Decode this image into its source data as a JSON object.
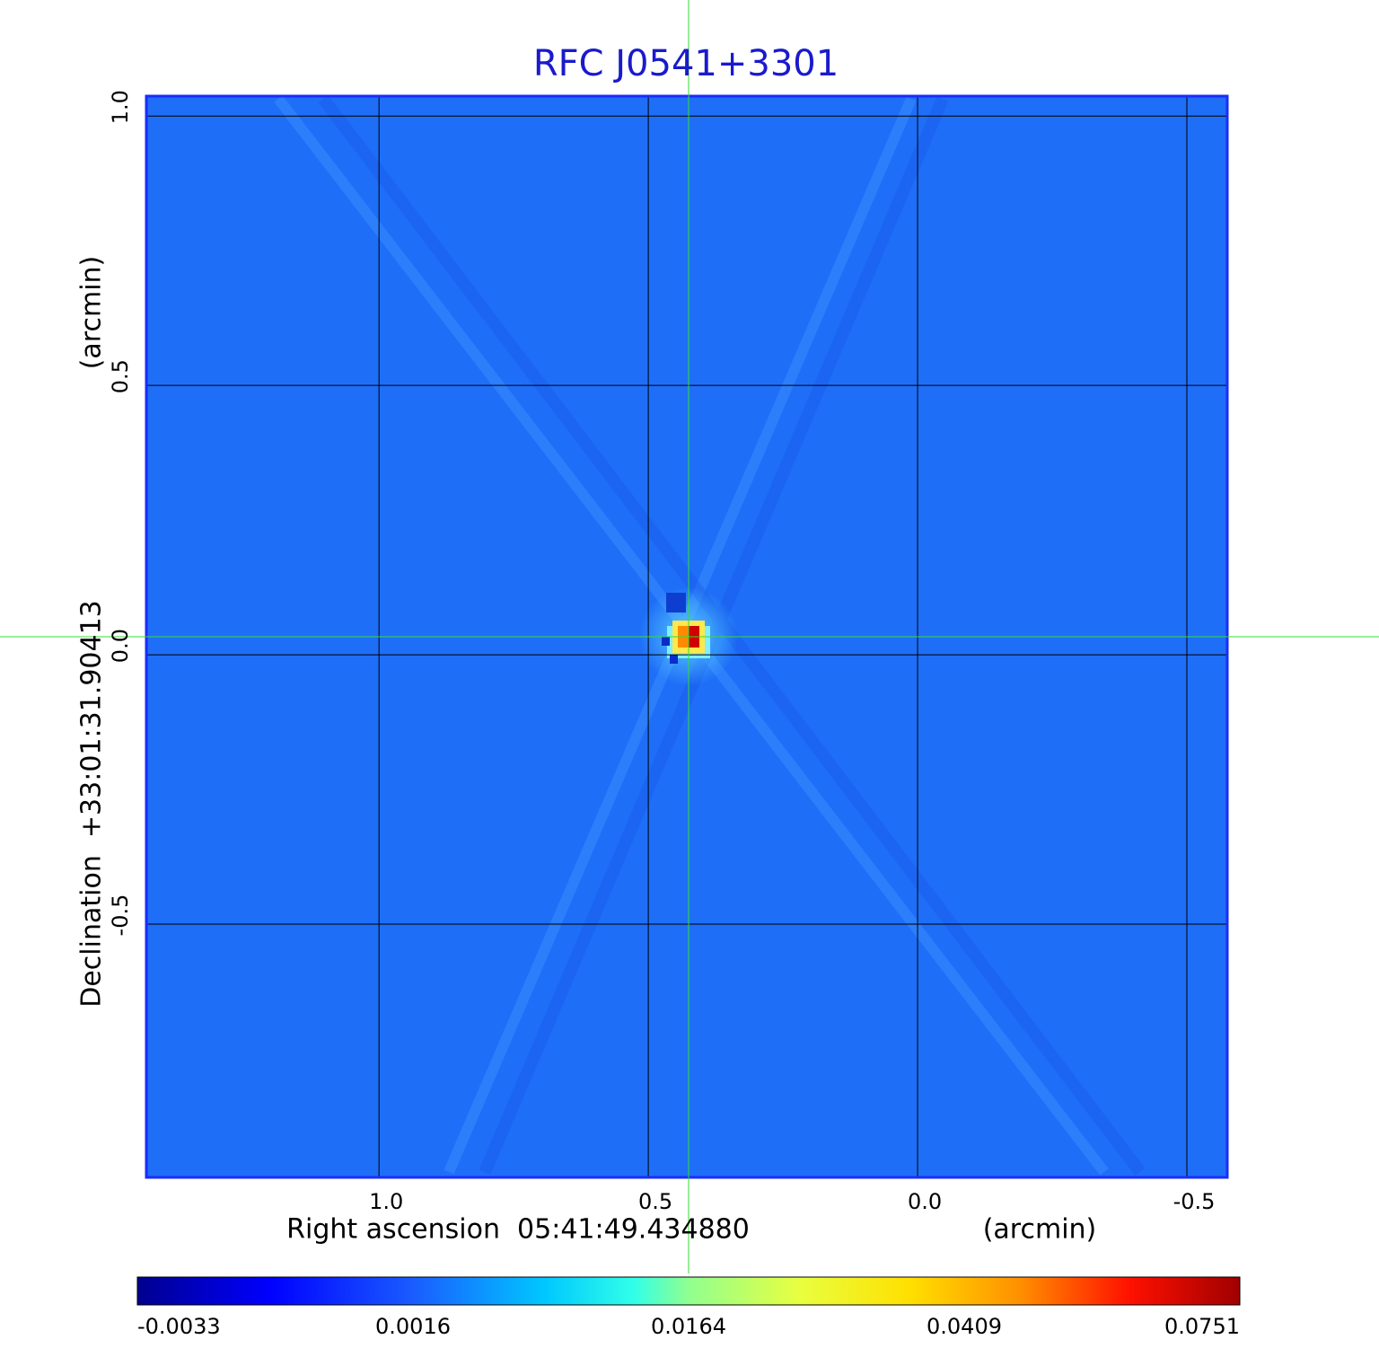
{
  "chart_data": {
    "type": "image",
    "title": "RFC J0541+3301",
    "x_label": "Right ascension  05:41:49.434880",
    "x_unit": "(arcmin)",
    "y_label": "Declination  +33:01:31.90413",
    "y_unit": "(arcmin)",
    "xlim": [
      1.432,
      -0.575
    ],
    "ylim": [
      -0.97,
      1.037
    ],
    "xticks": [
      {
        "value": 1,
        "label": "1.0"
      },
      0.5,
      {
        "value": 0,
        "label": "0.0"
      },
      -0.5
    ],
    "yticks": [
      -0.5,
      {
        "value": 0,
        "label": "0.0"
      },
      0.5,
      {
        "value": 1,
        "label": "1.0"
      }
    ],
    "grid": true,
    "colorbar_ticks": [
      -0.0033,
      0.0016,
      0.0164,
      0.0409,
      0.0751
    ]
  }
}
